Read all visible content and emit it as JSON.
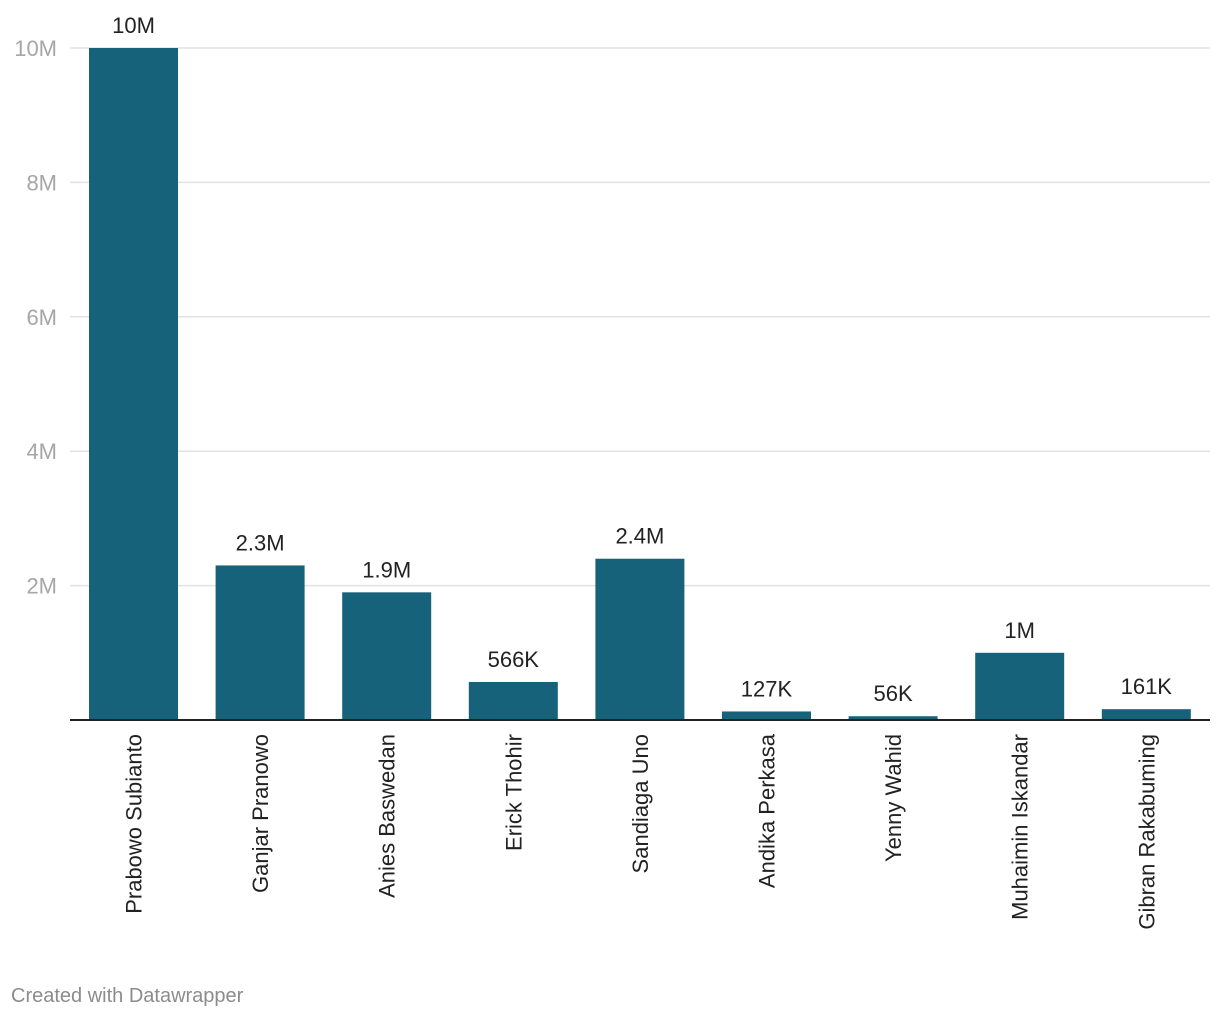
{
  "chart_data": {
    "type": "bar",
    "categories": [
      "Prabowo Subianto",
      "Ganjar Pranowo",
      "Anies Baswedan",
      "Erick Thohir",
      "Sandiaga Uno",
      "Andika Perkasa",
      "Yenny Wahid",
      "Muhaimin Iskandar",
      "Gibran Rakabuming"
    ],
    "values": [
      10000000,
      2300000,
      1900000,
      566000,
      2400000,
      127000,
      56000,
      1000000,
      161000
    ],
    "value_labels": [
      "10M",
      "2.3M",
      "1.9M",
      "566K",
      "2.4M",
      "127K",
      "56K",
      "1M",
      "161K"
    ],
    "yticks": [
      2000000,
      4000000,
      6000000,
      8000000,
      10000000
    ],
    "ytick_labels": [
      "2M",
      "4M",
      "6M",
      "8M",
      "10M"
    ],
    "ylim": [
      0,
      10000000
    ],
    "grid": true,
    "bar_color": "#17627b"
  },
  "footer": {
    "credit": "Created with Datawrapper"
  }
}
